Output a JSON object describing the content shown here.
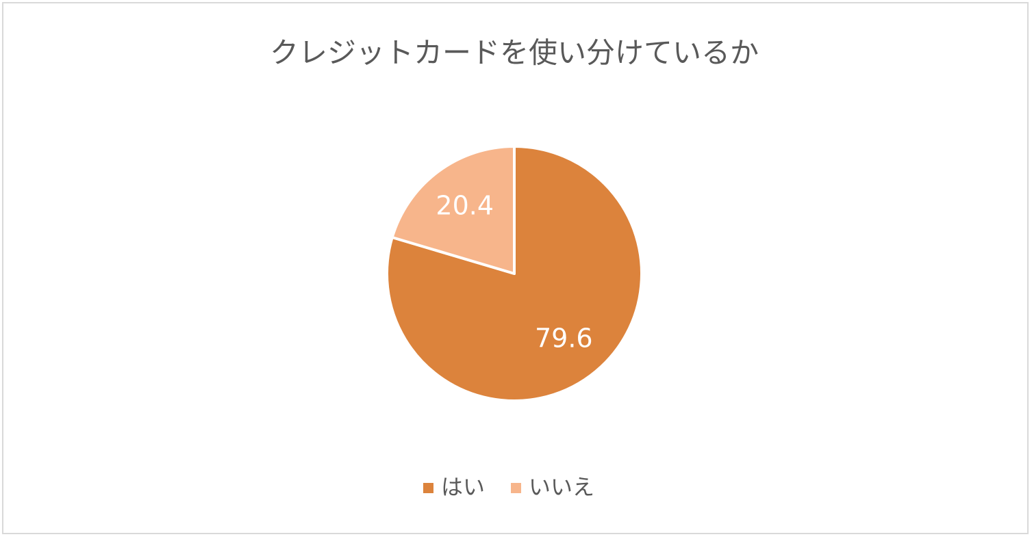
{
  "chart_data": {
    "type": "pie",
    "title": "クレジットカードを使い分けているか",
    "categories": [
      "はい",
      "いいえ"
    ],
    "values": [
      79.6,
      20.4
    ],
    "colors": [
      "#dc833c",
      "#f7b58b"
    ],
    "legend": "bottom"
  }
}
